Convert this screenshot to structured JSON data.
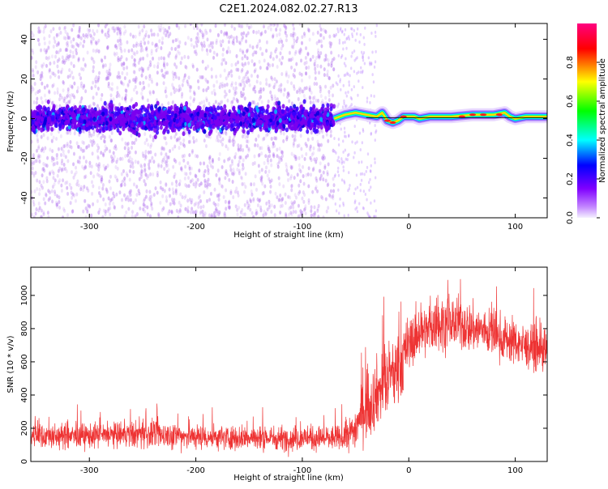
{
  "title": "C2E1.2024.082.02.27.R13",
  "chart_data": [
    {
      "type": "heatmap",
      "xlabel": "Height of straight line (km)",
      "ylabel": "Frequency (Hz)",
      "xlim": [
        -355,
        130
      ],
      "ylim": [
        -50,
        48
      ],
      "xticks": [
        -300,
        -200,
        -100,
        0,
        100
      ],
      "xtick_labels": [
        "-300",
        "-200",
        "-100",
        "0",
        "100"
      ],
      "yticks": [
        -40,
        -20,
        0,
        20,
        40
      ],
      "ytick_labels": [
        "-40",
        "-20",
        "0",
        "20",
        "40"
      ],
      "grid": false,
      "colorbar": {
        "label": "Normalized spectral amplitude",
        "range": [
          0,
          1
        ],
        "ticks": [
          0.0,
          0.2,
          0.4,
          0.6,
          0.8
        ],
        "tick_labels": [
          "0.0",
          "0.2",
          "0.4",
          "0.6",
          "0.8"
        ],
        "colormap": [
          "#f0f0f0",
          "#8000ff",
          "#0000ff",
          "#00ffff",
          "#00ff00",
          "#ffff00",
          "#ff0000",
          "#ff0080"
        ]
      },
      "description_series": {
        "scattered_region_km": [
          -355,
          -70
        ],
        "scattered_band_hz": [
          -10,
          10
        ],
        "coherent_line_region_km": [
          -70,
          130
        ],
        "coherent_line_frequency_hz": [
          [
            -70,
            0
          ],
          [
            -60,
            2
          ],
          [
            -50,
            3
          ],
          [
            -40,
            2
          ],
          [
            -30,
            1
          ],
          [
            -25,
            3
          ],
          [
            -20,
            -1
          ],
          [
            -15,
            -2
          ],
          [
            -10,
            -1
          ],
          [
            -5,
            1
          ],
          [
            0,
            1
          ],
          [
            5,
            1
          ],
          [
            10,
            0
          ],
          [
            20,
            1
          ],
          [
            40,
            1
          ],
          [
            60,
            2
          ],
          [
            80,
            2
          ],
          [
            90,
            3
          ],
          [
            95,
            1
          ],
          [
            100,
            0
          ],
          [
            110,
            1
          ],
          [
            130,
            1
          ]
        ]
      }
    },
    {
      "type": "line",
      "xlabel": "Height of straight line (km)",
      "ylabel": "SNR (10 * v/v)",
      "xlim": [
        -355,
        130
      ],
      "ylim": [
        0,
        1170
      ],
      "xticks": [
        -300,
        -200,
        -100,
        0,
        100
      ],
      "xtick_labels": [
        "-300",
        "-200",
        "-100",
        "0",
        "100"
      ],
      "yticks": [
        0,
        200,
        400,
        600,
        800,
        1000
      ],
      "ytick_labels": [
        "0",
        "200",
        "400",
        "600",
        "800",
        "1000"
      ],
      "grid": false,
      "series": [
        {
          "name": "SNR",
          "color": "#ee3333",
          "x": [
            -355,
            -330,
            -300,
            -270,
            -240,
            -200,
            -170,
            -140,
            -110,
            -80,
            -60,
            -50,
            -45,
            -40,
            -35,
            -30,
            -20,
            -10,
            -5,
            0,
            10,
            20,
            30,
            40,
            50,
            60,
            70,
            80,
            90,
            100,
            110,
            120,
            130
          ],
          "mean": [
            160,
            150,
            155,
            160,
            165,
            150,
            145,
            140,
            140,
            140,
            140,
            200,
            280,
            330,
            360,
            420,
            480,
            560,
            620,
            700,
            780,
            800,
            830,
            840,
            820,
            800,
            790,
            760,
            740,
            720,
            690,
            680,
            660
          ],
          "spread": [
            80,
            80,
            80,
            80,
            90,
            80,
            80,
            80,
            80,
            80,
            80,
            140,
            180,
            200,
            220,
            220,
            230,
            240,
            220,
            180,
            160,
            160,
            170,
            170,
            160,
            160,
            150,
            150,
            150,
            140,
            140,
            140,
            140
          ]
        }
      ]
    }
  ]
}
